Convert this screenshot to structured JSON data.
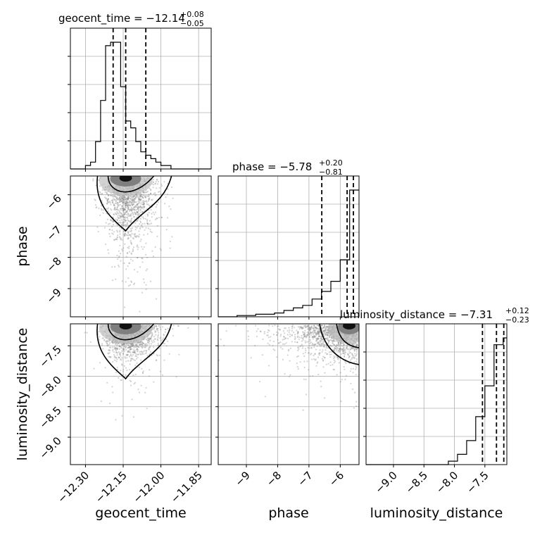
{
  "chart_data": {
    "type": "corner",
    "parameters": [
      "geocent_time",
      "phase",
      "luminosity_distance"
    ],
    "titles": [
      {
        "text": "geocent_time = −12.14",
        "plus": "+0.08",
        "minus": "−0.05"
      },
      {
        "text": "phase = −5.78",
        "plus": "+0.20",
        "minus": "−0.81"
      },
      {
        "text": "luminosity_distance = −7.31",
        "plus": "+0.12",
        "minus": "−0.23"
      }
    ],
    "ranges": [
      [
        -12.36,
        -11.8
      ],
      [
        -9.9,
        -5.4
      ],
      [
        -9.45,
        -7.14
      ]
    ],
    "ticks": [
      {
        "values": [
          -12.3,
          -12.15,
          -12.0,
          -11.85
        ],
        "labels": [
          "−12.30",
          "−12.15",
          "−12.00",
          "−11.85"
        ]
      },
      {
        "values": [
          -9,
          -8,
          -7,
          -6
        ],
        "labels": [
          "−9",
          "−8",
          "−7",
          "−6"
        ]
      },
      {
        "values": [
          -9.0,
          -8.5,
          -8.0,
          -7.5
        ],
        "labels": [
          "−9.0",
          "−8.5",
          "−8.0",
          "−7.5"
        ]
      }
    ],
    "histograms": [
      {
        "bin_edges": [
          -12.36,
          -12.34,
          -12.32,
          -12.3,
          -12.28,
          -12.26,
          -12.24,
          -12.22,
          -12.2,
          -12.18,
          -12.16,
          -12.14,
          -12.12,
          -12.1,
          -12.08,
          -12.06,
          -12.04,
          -12.02,
          -12.0,
          -11.98,
          -11.96,
          -11.94,
          -11.92,
          -11.9,
          -11.88,
          -11.86,
          -11.84,
          -11.82,
          -11.8
        ],
        "counts": [
          0,
          0,
          0,
          1,
          2,
          8,
          20,
          36,
          37,
          37,
          24,
          14,
          12,
          8,
          5,
          4,
          3,
          2,
          1,
          1,
          0,
          0,
          0,
          0,
          0,
          0,
          0,
          0
        ],
        "quantiles": [
          -12.19,
          -12.14,
          -12.06
        ]
      },
      {
        "bin_edges": [
          -9.9,
          -9.6,
          -9.3,
          -9.0,
          -8.7,
          -8.4,
          -8.1,
          -7.8,
          -7.5,
          -7.2,
          -6.9,
          -6.6,
          -6.3,
          -6.0,
          -5.7,
          -5.4
        ],
        "counts": [
          0,
          0,
          1,
          1,
          2,
          2,
          3,
          5,
          7,
          9,
          14,
          20,
          28,
          45,
          100
        ],
        "quantiles": [
          -6.59,
          -5.78,
          -5.58
        ]
      },
      {
        "bin_edges": [
          -9.45,
          -9.3,
          -9.15,
          -9.0,
          -8.85,
          -8.7,
          -8.55,
          -8.4,
          -8.25,
          -8.1,
          -7.95,
          -7.8,
          -7.65,
          -7.5,
          -7.35,
          -7.2,
          -7.14
        ],
        "counts": [
          0,
          0,
          0,
          0,
          0,
          0,
          0,
          0,
          0,
          1,
          3,
          7,
          14,
          23,
          35,
          37
        ],
        "quantiles": [
          -7.54,
          -7.31,
          -7.19
        ]
      }
    ],
    "grid": true,
    "color": "#000000",
    "scatter_color": "#808080"
  }
}
